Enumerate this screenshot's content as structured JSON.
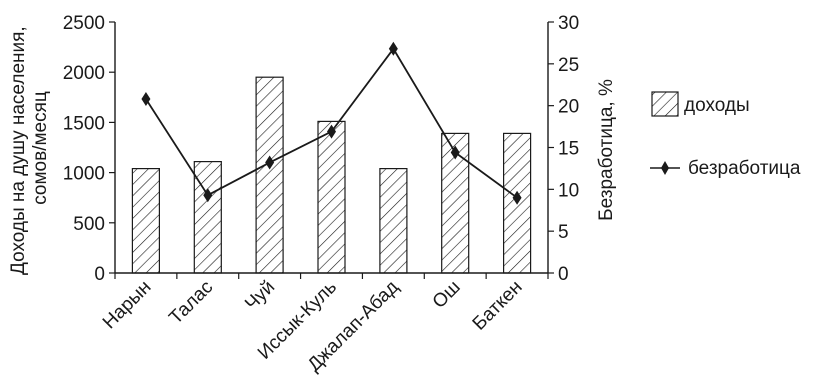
{
  "chart_data": {
    "type": "bar+line",
    "categories": [
      "Нарын",
      "Талас",
      "Чуй",
      "Иссык-Куль",
      "Джалап-Абад",
      "Ош",
      "Баткен"
    ],
    "series": [
      {
        "name": "доходы",
        "type": "bar",
        "axis": "left",
        "values": [
          1040,
          1110,
          1950,
          1510,
          1040,
          1390,
          1390
        ]
      },
      {
        "name": "безработица",
        "type": "line",
        "axis": "right",
        "values": [
          20.8,
          9.3,
          13.2,
          16.9,
          26.8,
          14.4,
          9.0
        ]
      }
    ],
    "ylabel_left": [
      "Доходы на душу населения,",
      "сомов/месяц"
    ],
    "ylabel_right": "Безработица, %",
    "ylim_left": [
      0,
      2500
    ],
    "yticks_left": [
      0,
      500,
      1000,
      1500,
      2000,
      2500
    ],
    "ylim_right": [
      0,
      30
    ],
    "yticks_right": [
      0,
      5,
      10,
      15,
      20,
      25,
      30
    ],
    "legend_position": "right",
    "grid": false,
    "colors": {
      "bar_fill": "hatched",
      "line": "#1a1a1a",
      "marker": "#1a1a1a"
    }
  }
}
